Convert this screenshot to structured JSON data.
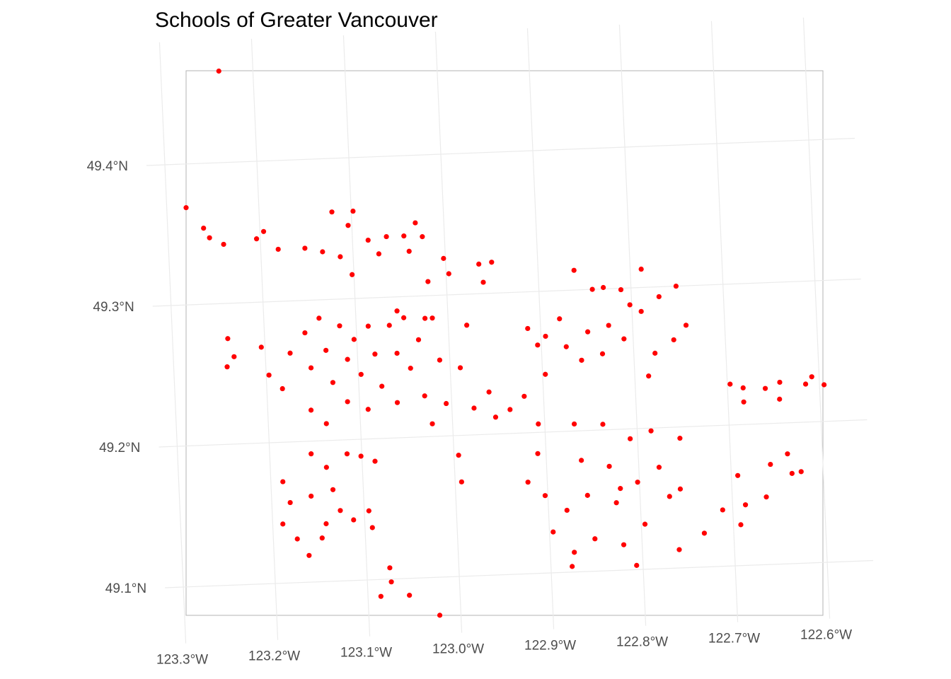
{
  "chart_data": {
    "type": "scatter",
    "title": "Schools of Greater Vancouver",
    "xlim": [
      -123.32,
      -122.55
    ],
    "ylim": [
      49.06,
      49.487
    ],
    "xticks": [
      {
        "value": -123.3,
        "label": "123.3°W"
      },
      {
        "value": -123.2,
        "label": "123.2°W"
      },
      {
        "value": -123.1,
        "label": "123.1°W"
      },
      {
        "value": -123.0,
        "label": "123.0°W"
      },
      {
        "value": -122.9,
        "label": "122.9°W"
      },
      {
        "value": -122.8,
        "label": "122.8°W"
      },
      {
        "value": -122.7,
        "label": "122.7°W"
      },
      {
        "value": -122.6,
        "label": "122.6°W"
      }
    ],
    "yticks": [
      {
        "value": 49.1,
        "label": "49.1°N"
      },
      {
        "value": 49.2,
        "label": "49.2°N"
      },
      {
        "value": 49.3,
        "label": "49.3°N"
      },
      {
        "value": 49.4,
        "label": "49.4°N"
      }
    ],
    "grid": true,
    "color": "#ff0000",
    "x": [
      -123.279,
      -123.237,
      -123.261,
      -123.255,
      -123.24,
      -123.24,
      -123.234,
      -123.242,
      -123.204,
      -123.196,
      -123.181,
      -123.152,
      -123.133,
      -123.121,
      -123.114,
      -123.104,
      -123.098,
      -123.102,
      -123.083,
      -123.072,
      -123.063,
      -123.044,
      -123.039,
      -123.031,
      -123.024,
      -123.02,
      -123.002,
      -122.997,
      -122.964,
      -122.95,
      -122.96,
      -123.204,
      -123.197,
      -123.183,
      -123.173,
      -123.156,
      -123.151,
      -123.153,
      -123.14,
      -123.134,
      -123.137,
      -123.128,
      -123.118,
      -123.111,
      -123.113,
      -123.103,
      -123.097,
      -123.087,
      -123.091,
      -123.081,
      -123.075,
      -123.064,
      -123.057,
      -123.059,
      -123.048,
      -123.043,
      -123.033,
      -123.029,
      -123.017,
      -123.011,
      -123.006,
      -122.989,
      -122.98,
      -122.976,
      -122.959,
      -122.953,
      -122.937,
      -122.921,
      -122.907,
      -123.022,
      -123.055,
      -123.025,
      -123.187,
      -123.189,
      -123.18,
      -123.174,
      -123.162,
      -123.155,
      -123.157,
      -123.139,
      -123.142,
      -123.133,
      -123.126,
      -123.116,
      -123.112,
      -123.101,
      -123.095,
      -123.086,
      -123.092,
      -123.147,
      -123.075,
      -123.074,
      -123.086,
      -123.055,
      -123.023,
      -122.995,
      -122.993,
      -122.861,
      -122.842,
      -122.83,
      -122.811,
      -122.788,
      -122.79,
      -122.77,
      -122.751,
      -122.742,
      -122.756,
      -122.777,
      -122.785,
      -122.826,
      -122.849,
      -122.857,
      -122.873,
      -122.879,
      -122.895,
      -122.904,
      -122.914,
      -122.897,
      -122.81,
      -122.802,
      -122.834,
      -122.921,
      -122.909,
      -122.903,
      -122.896,
      -122.88,
      -122.874,
      -122.868,
      -122.862,
      -122.857,
      -122.851,
      -122.837,
      -122.832,
      -122.826,
      -122.82,
      -122.808,
      -122.802,
      -122.796,
      -122.785,
      -122.778,
      -122.768,
      -122.754,
      -122.756,
      -122.807,
      -122.877,
      -122.821,
      -122.76,
      -122.732,
      -122.711,
      -122.692,
      -122.686,
      -122.693,
      -122.663,
      -122.657,
      -122.638,
      -122.634,
      -122.624,
      -122.697,
      -122.683,
      -122.683,
      -122.659,
      -122.644,
      -122.643,
      -122.615,
      -122.608,
      -122.595
    ],
    "values": [
      49.369,
      49.465,
      49.354,
      49.347,
      49.342,
      49.275,
      49.262,
      49.255,
      49.345,
      49.35,
      49.337,
      49.337,
      49.334,
      49.362,
      49.33,
      49.352,
      49.362,
      49.317,
      49.341,
      49.331,
      49.343,
      49.343,
      49.332,
      49.352,
      49.342,
      49.31,
      49.326,
      49.315,
      49.321,
      49.322,
      49.308,
      49.268,
      49.248,
      49.238,
      49.263,
      49.277,
      49.252,
      49.222,
      49.287,
      49.264,
      49.212,
      49.241,
      49.281,
      49.257,
      49.227,
      49.271,
      49.246,
      49.28,
      49.221,
      49.26,
      49.237,
      49.28,
      49.26,
      49.225,
      49.285,
      49.249,
      49.269,
      49.229,
      49.284,
      49.254,
      49.223,
      49.248,
      49.278,
      49.219,
      49.23,
      49.212,
      49.217,
      49.226,
      49.206,
      49.209,
      49.29,
      49.284,
      49.172,
      49.142,
      49.157,
      49.131,
      49.119,
      49.191,
      49.161,
      49.181,
      49.141,
      49.165,
      49.15,
      49.19,
      49.143,
      49.188,
      49.149,
      49.184,
      49.137,
      49.131,
      49.108,
      49.098,
      49.088,
      49.088,
      49.073,
      49.186,
      49.167,
      49.314,
      49.3,
      49.301,
      49.299,
      49.313,
      49.283,
      49.293,
      49.3,
      49.272,
      49.262,
      49.253,
      49.237,
      49.274,
      49.27,
      49.25,
      49.26,
      49.28,
      49.268,
      49.262,
      49.274,
      49.241,
      49.264,
      49.288,
      49.254,
      49.165,
      49.185,
      49.155,
      49.129,
      49.144,
      49.114,
      49.205,
      49.179,
      49.154,
      49.123,
      49.204,
      49.174,
      49.148,
      49.118,
      49.193,
      49.162,
      49.132,
      49.198,
      49.172,
      49.151,
      49.192,
      49.156,
      49.103,
      49.104,
      49.158,
      49.113,
      49.124,
      49.14,
      49.129,
      49.143,
      49.164,
      49.148,
      49.171,
      49.178,
      49.164,
      49.165,
      49.229,
      49.226,
      49.216,
      49.225,
      49.217,
      49.229,
      49.227,
      49.232,
      49.226
    ]
  }
}
